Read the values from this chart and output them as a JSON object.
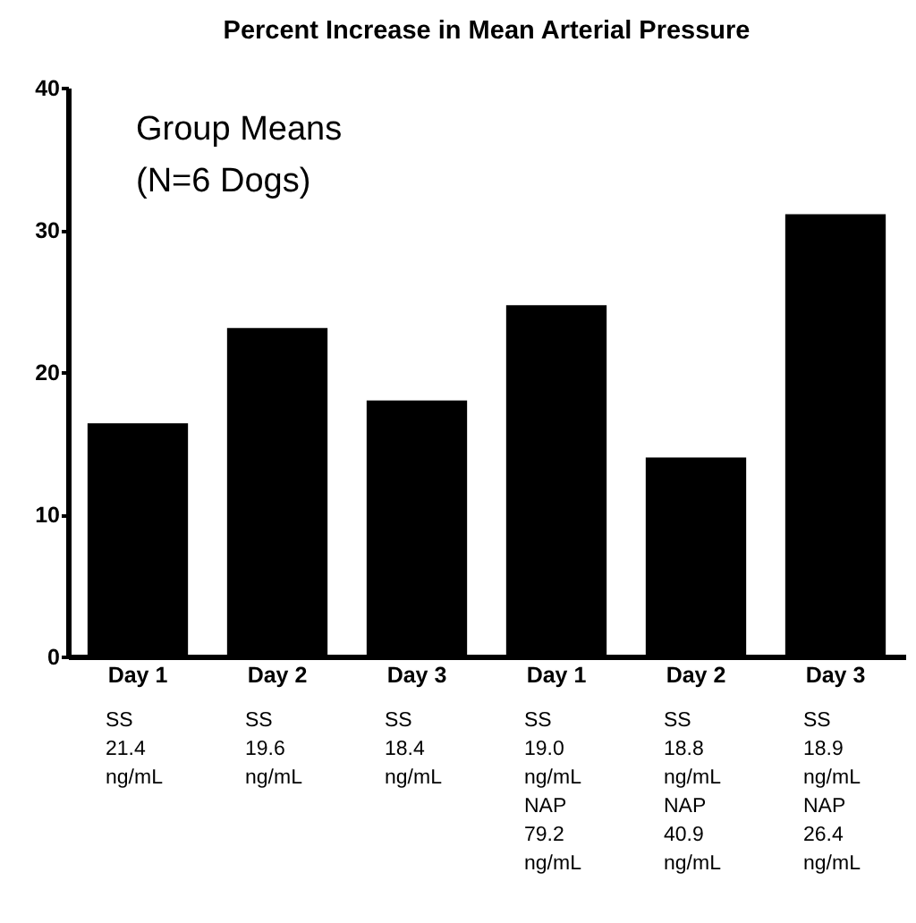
{
  "chart_data": {
    "type": "bar",
    "title": "Percent Increase in Mean Arterial Pressure",
    "categories": [
      "Day 1",
      "Day 2",
      "Day 3",
      "Day 1",
      "Day 2",
      "Day 3"
    ],
    "values": [
      16.4,
      23.1,
      18.0,
      24.7,
      14.0,
      31.1
    ],
    "color": "#000000",
    "ylim": [
      0,
      40
    ],
    "yticks": [
      0,
      10,
      20,
      30,
      40
    ],
    "annotations": [
      "Group Means\n (N=6 Dogs)",
      "SS\n21.4\nng/mL",
      "SS\n19.6\nng/mL",
      "SS\n18.4\nng/mL",
      "SS\n19.0\nng/mL\n\nNAP\n79.2\nng/mL",
      "SS\n18.8\nng/mL\n\nNAP\n40.9\nng/mL",
      "SS\n18.9\nng/mL\n\nNAP\n26.4\nng/mL"
    ]
  }
}
